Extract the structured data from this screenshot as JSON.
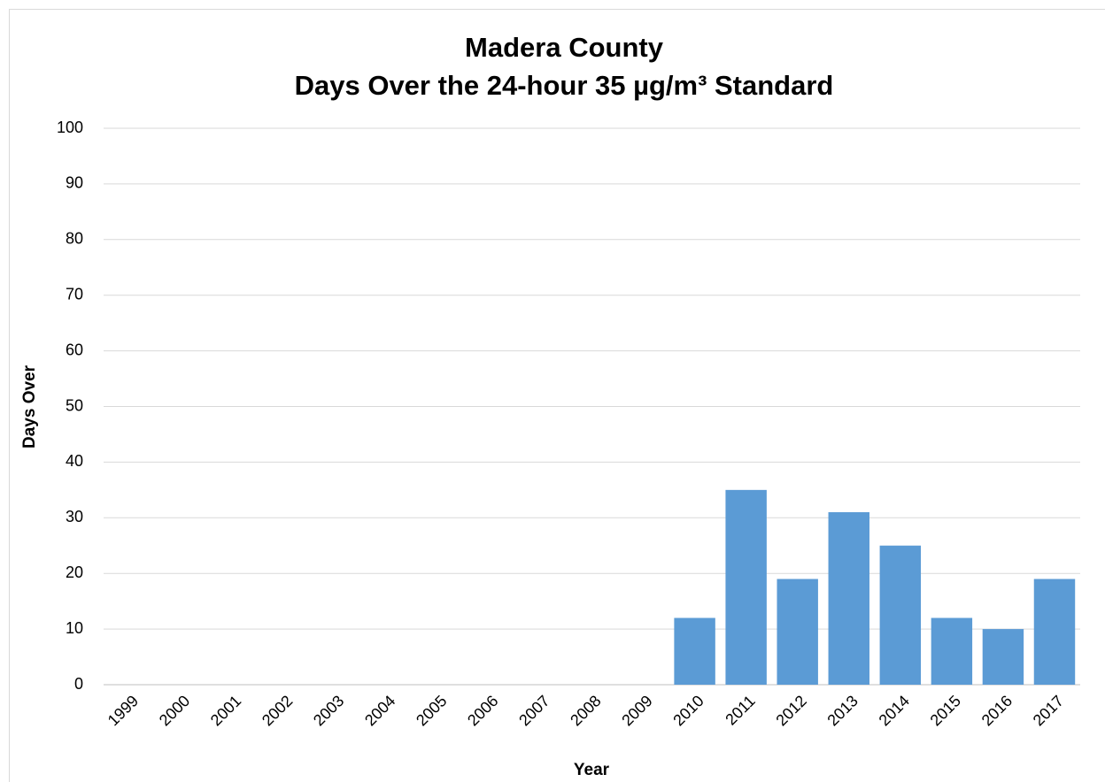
{
  "chart_data": {
    "type": "bar",
    "title_lines": [
      "Madera County",
      "Days Over the 24-hour 35 µg/m³ Standard"
    ],
    "x_label": "Year",
    "y_label": "Days Over",
    "categories": [
      "1999",
      "2000",
      "2001",
      "2002",
      "2003",
      "2004",
      "2005",
      "2006",
      "2007",
      "2008",
      "2009",
      "2010",
      "2011",
      "2012",
      "2013",
      "2014",
      "2015",
      "2016",
      "2017"
    ],
    "values": [
      0,
      0,
      0,
      0,
      0,
      0,
      0,
      0,
      0,
      0,
      0,
      12,
      35,
      19,
      31,
      25,
      12,
      10,
      19
    ],
    "color": "#5b9bd5",
    "ylim": [
      0,
      100
    ],
    "yticks": [
      0,
      10,
      20,
      30,
      40,
      50,
      60,
      70,
      80,
      90,
      100
    ],
    "grid": true
  }
}
